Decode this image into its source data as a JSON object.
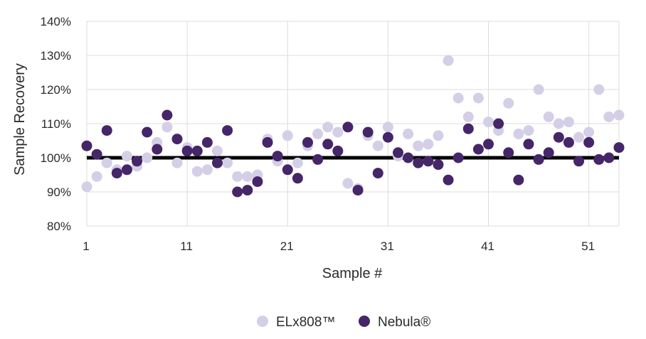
{
  "chart_data": {
    "type": "scatter",
    "xlabel": "Sample #",
    "ylabel": "Sample Recovery",
    "xlim": [
      1,
      54
    ],
    "ylim": [
      80,
      140
    ],
    "x_ticks": [
      1,
      11,
      21,
      31,
      41,
      51
    ],
    "y_ticks": [
      80,
      90,
      100,
      110,
      120,
      130,
      140
    ],
    "y_tick_labels": [
      "80%",
      "90%",
      "100%",
      "110%",
      "120%",
      "130%",
      "140%"
    ],
    "x_tick_labels": [
      "1",
      "11",
      "21",
      "31",
      "41",
      "51"
    ],
    "grid": true,
    "legend_position": "bottom-center",
    "reference_line": {
      "y": 100,
      "color": "#000000"
    },
    "series": [
      {
        "name": "ELx808™",
        "color": "#d4cfe6",
        "x": [
          1,
          2,
          3,
          4,
          5,
          6,
          7,
          8,
          9,
          10,
          11,
          12,
          13,
          14,
          15,
          16,
          17,
          18,
          19,
          20,
          21,
          22,
          23,
          24,
          25,
          26,
          27,
          28,
          29,
          30,
          31,
          32,
          33,
          34,
          35,
          36,
          37,
          38,
          39,
          40,
          41,
          42,
          43,
          44,
          45,
          46,
          47,
          48,
          49,
          50,
          51,
          52,
          53,
          54
        ],
        "y": [
          91.5,
          94.5,
          98.5,
          96.5,
          100.5,
          97.5,
          100,
          104.5,
          109,
          98.5,
          103,
          96,
          96.5,
          102,
          98.5,
          94.5,
          94.5,
          95,
          105.5,
          99,
          106.5,
          98.5,
          103.5,
          107,
          109,
          107.5,
          92.5,
          91,
          106.5,
          103.5,
          109,
          100.5,
          107,
          103.5,
          104,
          106.5,
          128.5,
          117.5,
          112,
          117.5,
          110.5,
          108,
          116,
          107,
          108,
          120,
          112,
          110,
          110.5,
          106,
          107.5,
          120,
          112,
          112.5
        ]
      },
      {
        "name": "Nebula®",
        "color": "#452668",
        "x": [
          1,
          2,
          3,
          4,
          5,
          6,
          7,
          8,
          9,
          10,
          11,
          12,
          13,
          14,
          15,
          16,
          17,
          18,
          19,
          20,
          21,
          22,
          23,
          24,
          25,
          26,
          27,
          28,
          29,
          30,
          31,
          32,
          33,
          34,
          35,
          36,
          37,
          38,
          39,
          40,
          41,
          42,
          43,
          44,
          45,
          46,
          47,
          48,
          49,
          50,
          51,
          52,
          53,
          54
        ],
        "y": [
          103.5,
          101,
          108,
          95.5,
          96.5,
          99,
          107.5,
          102.5,
          112.5,
          105.5,
          102,
          102,
          104.5,
          98.5,
          108,
          90,
          90.5,
          93,
          104.5,
          100.5,
          96.5,
          94,
          104.5,
          99.5,
          104,
          102,
          109,
          90.5,
          107.5,
          95.5,
          106,
          101.5,
          100,
          98.5,
          99,
          98,
          93.5,
          100,
          108.5,
          102.5,
          104,
          110,
          101.5,
          93.5,
          104,
          99.5,
          101.5,
          106,
          104.5,
          99,
          104.5,
          99.5,
          100,
          103
        ]
      }
    ]
  }
}
